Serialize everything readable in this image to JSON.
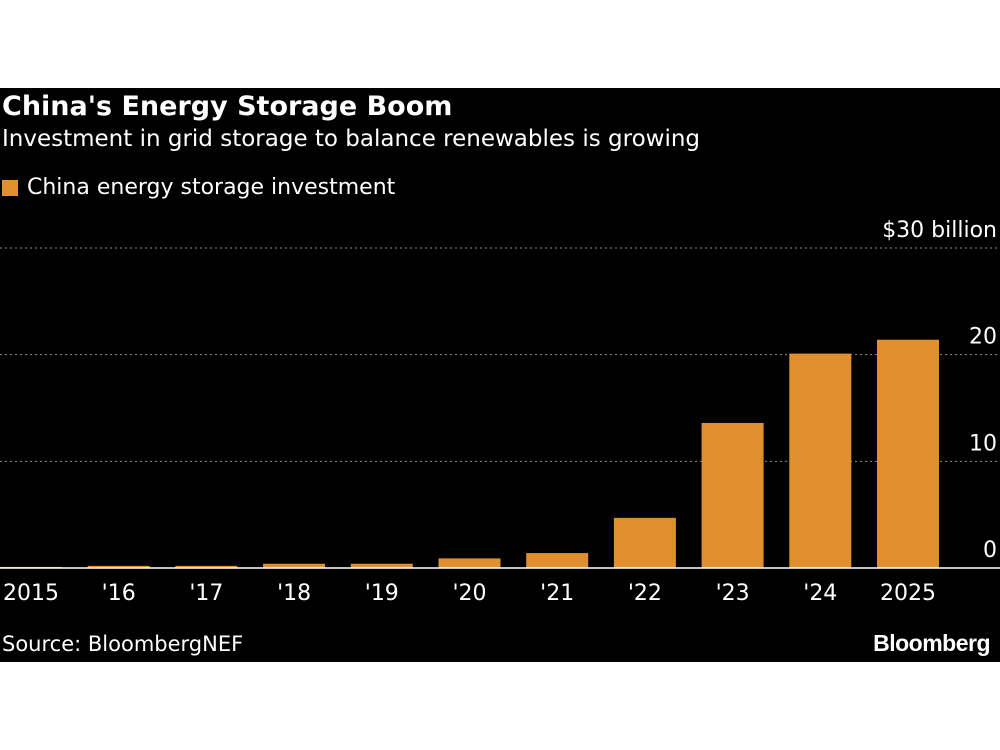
{
  "chart_data": {
    "type": "bar",
    "title": "China's Energy Storage Boom",
    "subtitle": "Investment in grid storage to balance renewables is growing",
    "legend": {
      "placement": "top-left",
      "entries": [
        "China energy storage investment"
      ]
    },
    "series": [
      {
        "name": "China energy storage investment",
        "color": "#e08f2e",
        "values": [
          0.1,
          0.2,
          0.2,
          0.4,
          0.4,
          0.9,
          1.4,
          4.7,
          13.6,
          20.1,
          21.4
        ]
      }
    ],
    "categories": [
      "2015",
      "'16",
      "'17",
      "'18",
      "'19",
      "'20",
      "'21",
      "'22",
      "'23",
      "'24",
      "2025"
    ],
    "xlabel": "",
    "ylabel": "",
    "ylim": [
      0,
      30
    ],
    "yticks": [
      {
        "value": 0,
        "label": "0"
      },
      {
        "value": 10,
        "label": "10"
      },
      {
        "value": 20,
        "label": "20"
      },
      {
        "value": 30,
        "label": "$30 billion"
      }
    ],
    "grid": true,
    "source": "Source: BloombergNEF"
  },
  "brand": "Bloomberg",
  "colors": {
    "background": "#000000",
    "bar": "#e08f2e",
    "text": "#ffffff",
    "grid": "#8a8a8a"
  }
}
